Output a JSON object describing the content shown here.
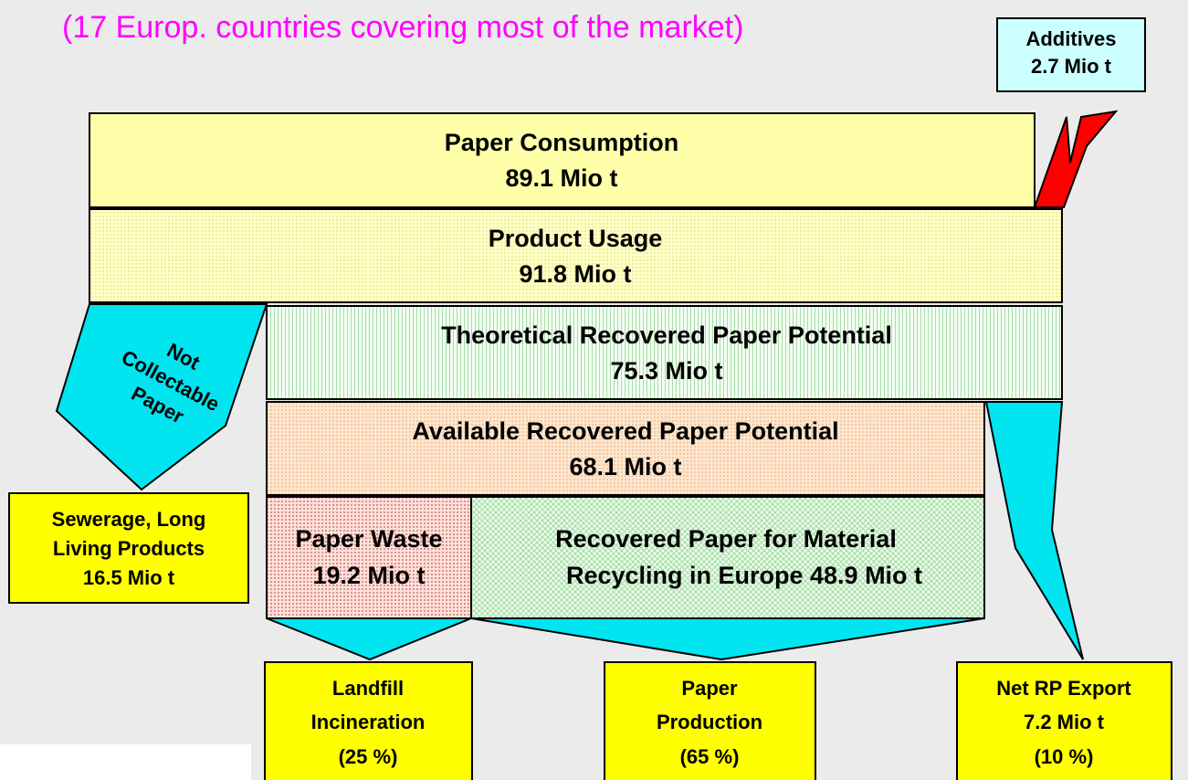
{
  "subtitle": "(17 Europ. countries covering most of the market)",
  "additives": {
    "lines": [
      "Additives",
      "2.7 Mio t"
    ]
  },
  "consumption": {
    "lines": [
      "Paper Consumption",
      "89.1 Mio t"
    ]
  },
  "usage": {
    "lines": [
      "Product Usage",
      "91.8 Mio t"
    ]
  },
  "theoretical": {
    "lines": [
      "Theoretical Recovered Paper Potential",
      "75.3 Mio t"
    ]
  },
  "available": {
    "lines": [
      "Available Recovered Paper Potential",
      "68.1 Mio t"
    ]
  },
  "waste": {
    "lines": [
      "Paper Waste",
      "19.2 Mio t"
    ]
  },
  "recovered": {
    "lines": [
      "Recovered Paper for Material",
      "Recycling in Europe 48.9 Mio t"
    ]
  },
  "not_collectable": {
    "lines": [
      "Not",
      "Collectable",
      "Paper"
    ]
  },
  "sewerage": {
    "lines": [
      "Sewerage, Long",
      "Living Products",
      "16.5 Mio t"
    ]
  },
  "landfill": {
    "lines": [
      "Landfill",
      "Incineration",
      "(25 %)"
    ]
  },
  "production": {
    "lines": [
      "Paper",
      "Production",
      "(65 %)"
    ]
  },
  "export": {
    "lines": [
      "Net RP Export",
      "7.2 Mio t",
      "(10 %)"
    ]
  }
}
